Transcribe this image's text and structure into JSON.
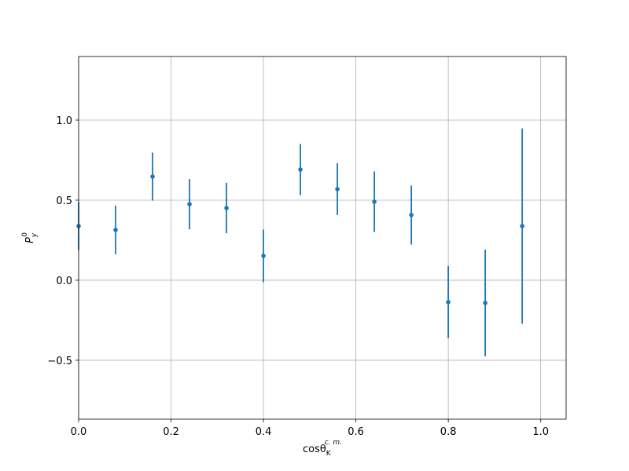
{
  "chart_data": {
    "type": "errorbar",
    "x_label": {
      "text": "cosθ",
      "sub": "K",
      "sup": "c. m."
    },
    "y_label": {
      "text": "P",
      "sub": "y",
      "sup": "0"
    },
    "x": [
      0,
      0.08,
      0.16,
      0.24,
      0.32,
      0.4,
      0.48,
      0.56,
      0.64,
      0.72,
      0.8,
      0.88,
      0.96
    ],
    "series": [
      {
        "color": "#1f77b4",
        "values": [
          0.338,
          0.314,
          0.647,
          0.475,
          0.451,
          0.152,
          0.691,
          0.569,
          0.49,
          0.407,
          -0.137,
          -0.142,
          0.338
        ],
        "errors": [
          0.15,
          0.152,
          0.15,
          0.157,
          0.157,
          0.164,
          0.16,
          0.162,
          0.189,
          0.184,
          0.225,
          0.333,
          0.61
        ]
      }
    ],
    "xlim": [
      0,
      1.055
    ],
    "ylim": [
      -0.868,
      1.397
    ],
    "xticks": [
      {
        "value": 0,
        "label": "0.0"
      },
      0.2,
      0.4,
      0.6,
      0.8,
      {
        "value": 1,
        "label": "1.0"
      }
    ],
    "yticks": [
      {
        "value": -0.5,
        "label": "−0.5"
      },
      {
        "value": 0,
        "label": "0.0"
      },
      0.5,
      {
        "value": 1,
        "label": "1.0"
      }
    ],
    "grid": true
  }
}
